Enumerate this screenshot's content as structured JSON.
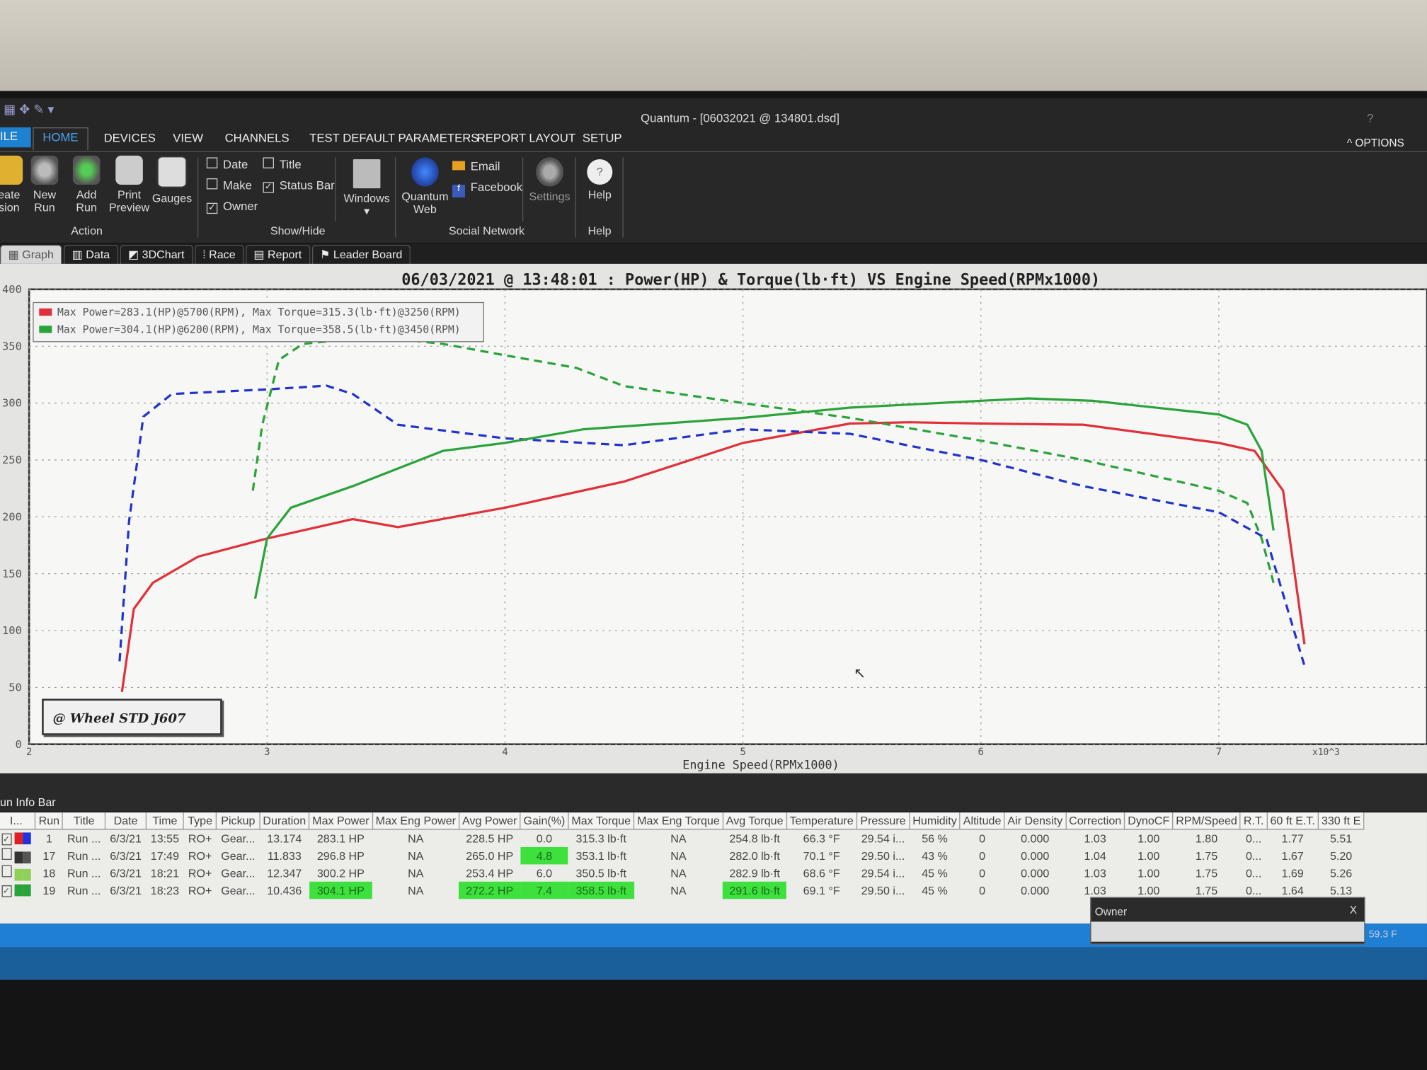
{
  "window": {
    "title": "Quantum - [06032021 @ 134801.dsd]",
    "options": "OPTIONS",
    "help_q": "?"
  },
  "menu": [
    "ILE",
    "HOME",
    "DEVICES",
    "VIEW",
    "CHANNELS",
    "TEST DEFAULT PARAMETERS",
    "REPORT LAYOUT",
    "SETUP"
  ],
  "ribbon": {
    "action": {
      "label": "Action",
      "buttons": [
        "eate\nsion",
        "New\nRun",
        "Add\nRun",
        "Print\nPreview",
        "Gauges"
      ]
    },
    "showhide": {
      "label": "Show/Hide",
      "checks": [
        {
          "label": "Date",
          "checked": false
        },
        {
          "label": "Title",
          "checked": false
        },
        {
          "label": "Make",
          "checked": false
        },
        {
          "label": "Status Bar",
          "checked": true
        },
        {
          "label": "Owner",
          "checked": true
        }
      ],
      "windows": "Windows"
    },
    "social": {
      "label": "Social Network",
      "quantum_web": "Quantum\nWeb",
      "email": "Email",
      "facebook": "Facebook",
      "settings": "Settings"
    },
    "help": {
      "label": "Help",
      "button": "Help"
    }
  },
  "tabs": [
    "Graph",
    "Data",
    "3DChart",
    "Race",
    "Report",
    "Leader Board"
  ],
  "chart_data": {
    "type": "line",
    "title": "06/03/2021 @ 13:48:01 : Power(HP) & Torque(lb·ft) VS Engine Speed(RPMx1000)",
    "xlabel": "Engine Speed(RPMx1000)",
    "x_multiplier": "x10^3",
    "xlim": [
      2,
      7.5
    ],
    "ylim": [
      0,
      400
    ],
    "xticks": [
      2,
      3,
      4,
      5,
      6,
      7
    ],
    "yticks": [
      0,
      50,
      100,
      150,
      200,
      250,
      300,
      350,
      400
    ],
    "grid": true,
    "legend_placement": "top-left",
    "legend": [
      {
        "text": "Max Power=283.1(HP)@5700(RPM), Max Torque=315.3(lb·ft)@3250(RPM)",
        "color": "#e0303a"
      },
      {
        "text": "Max Power=304.1(HP)@6200(RPM), Max Torque=358.5(lb·ft)@3450(RPM)",
        "color": "#2aa33a"
      }
    ],
    "annotation": "@ Wheel STD J607",
    "series": [
      {
        "color": "#e0303a",
        "style": "solid",
        "x": [
          2.39,
          2.44,
          2.52,
          2.71,
          3.0,
          3.36,
          3.55,
          4.0,
          4.5,
          5.0,
          5.45,
          5.7,
          6.0,
          6.43,
          7.0,
          7.15,
          7.27,
          7.36
        ],
        "y": [
          46,
          119,
          142,
          165,
          181,
          198,
          191,
          208,
          231,
          265,
          282,
          283.1,
          282,
          281,
          265,
          258,
          223,
          88
        ]
      },
      {
        "color": "#2233cc",
        "style": "dashed",
        "x": [
          2.38,
          2.42,
          2.48,
          2.6,
          3.0,
          3.25,
          3.36,
          3.55,
          4.0,
          4.5,
          5.0,
          5.45,
          6.0,
          6.43,
          7.0,
          7.2,
          7.36
        ],
        "y": [
          73,
          196,
          288,
          308,
          312,
          315.3,
          308,
          281,
          269,
          263,
          277,
          273,
          250,
          227,
          204,
          181,
          69
        ]
      },
      {
        "color": "#2aa33a",
        "style": "solid",
        "x": [
          2.95,
          3.0,
          3.1,
          3.36,
          3.74,
          4.0,
          4.33,
          5.0,
          5.45,
          6.0,
          6.2,
          6.47,
          7.0,
          7.12,
          7.18,
          7.23
        ],
        "y": [
          128,
          181,
          208,
          227,
          258,
          265,
          277,
          287,
          296,
          302,
          304.1,
          302,
          290,
          281,
          258,
          188
        ]
      },
      {
        "color": "#2aa33a",
        "style": "dashed",
        "x": [
          2.94,
          2.98,
          3.05,
          3.15,
          3.45,
          3.74,
          4.0,
          4.3,
          4.5,
          5.0,
          5.45,
          6.0,
          6.43,
          7.0,
          7.12,
          7.18,
          7.23
        ],
        "y": [
          223,
          281,
          338,
          352,
          358.5,
          352,
          342,
          331,
          315,
          300,
          287,
          267,
          250,
          223,
          212,
          181,
          142
        ]
      }
    ]
  },
  "run_info": {
    "title": "un Info Bar",
    "columns": [
      "I...",
      "Run",
      "Title",
      "Date",
      "Time",
      "Type",
      "Pickup",
      "Duration",
      "Max Power",
      "Max Eng Power",
      "Avg Power",
      "Gain(%)",
      "Max Torque",
      "Max Eng Torque",
      "Avg Torque",
      "Temperature",
      "Pressure",
      "Humidity",
      "Altitude",
      "Air Density",
      "Correction",
      "DynoCF",
      "RPM/Speed",
      "R.T.",
      "60 ft E.T.",
      "330 ft E"
    ],
    "rows": [
      {
        "checked": true,
        "colors": [
          "#e02020",
          "#2030e0"
        ],
        "cells": [
          "1",
          "Run ...",
          "6/3/21",
          "13:55",
          "RO+",
          "Gear...",
          "13.174",
          "283.1 HP",
          "NA",
          "228.5 HP",
          "0.0",
          "315.3 lb·ft",
          "NA",
          "254.8 lb·ft",
          "66.3 °F",
          "29.54 i...",
          "56 %",
          "0",
          "0.000",
          "1.03",
          "1.00",
          "1.80",
          "0...",
          "1.77",
          "5.51"
        ],
        "highlight": []
      },
      {
        "checked": false,
        "colors": [
          "#333333",
          "#555555"
        ],
        "cells": [
          "17",
          "Run ...",
          "6/3/21",
          "17:49",
          "RO+",
          "Gear...",
          "11.833",
          "296.8 HP",
          "NA",
          "265.0 HP",
          "4.8",
          "353.1 lb·ft",
          "NA",
          "282.0 lb·ft",
          "70.1 °F",
          "29.50 i...",
          "43 %",
          "0",
          "0.000",
          "1.04",
          "1.00",
          "1.75",
          "0...",
          "1.67",
          "5.20"
        ],
        "highlight": [
          10
        ]
      },
      {
        "checked": false,
        "colors": [
          "#8ed05a",
          "#8ed05a"
        ],
        "cells": [
          "18",
          "Run ...",
          "6/3/21",
          "18:21",
          "RO+",
          "Gear...",
          "12.347",
          "300.2 HP",
          "NA",
          "253.4 HP",
          "6.0",
          "350.5 lb·ft",
          "NA",
          "282.9 lb·ft",
          "68.6 °F",
          "29.54 i...",
          "45 %",
          "0",
          "0.000",
          "1.03",
          "1.00",
          "1.75",
          "0...",
          "1.69",
          "5.26"
        ],
        "highlight": []
      },
      {
        "checked": true,
        "colors": [
          "#2aa33a",
          "#2aa33a"
        ],
        "cells": [
          "19",
          "Run ...",
          "6/3/21",
          "18:23",
          "RO+",
          "Gear...",
          "10.436",
          "304.1 HP",
          "NA",
          "272.2 HP",
          "7.4",
          "358.5 lb·ft",
          "NA",
          "291.6 lb·ft",
          "69.1 °F",
          "29.50 i...",
          "45 %",
          "0",
          "0.000",
          "1.03",
          "1.00",
          "1.75",
          "0...",
          "1.64",
          "5.13"
        ],
        "highlight": [
          7,
          9,
          10,
          11,
          13
        ]
      }
    ]
  },
  "owner_panel": {
    "title": "Owner",
    "close": "X"
  },
  "status": {
    "temp": "59.3 F"
  }
}
